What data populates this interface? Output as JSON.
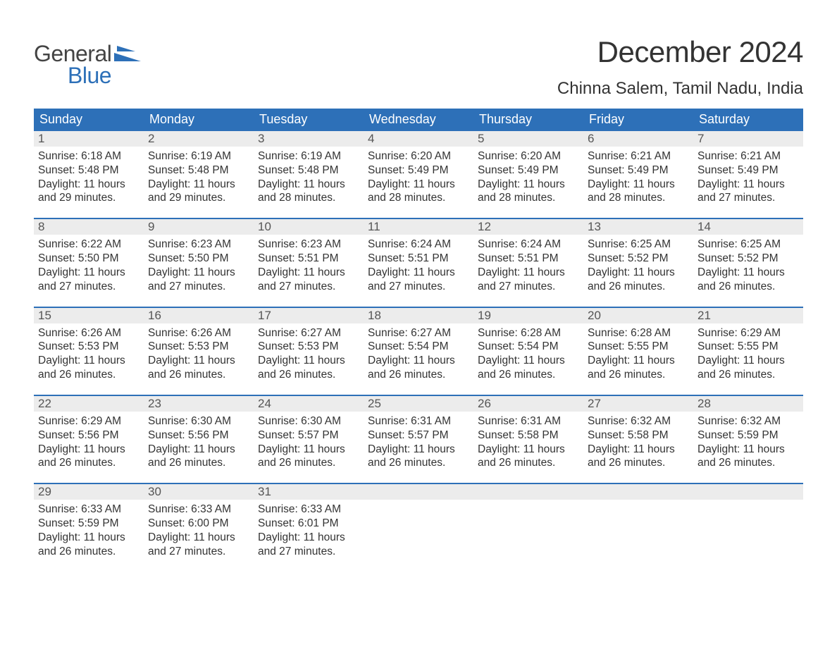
{
  "logo": {
    "word1": "General",
    "word2": "Blue",
    "accent_color": "#2d70b8",
    "text_color": "#444444"
  },
  "title": "December 2024",
  "location": "Chinna Salem, Tamil Nadu, India",
  "colors": {
    "header_bg": "#2d70b8",
    "header_text": "#ffffff",
    "daynum_bg": "#ececec",
    "daynum_text": "#555555",
    "body_text": "#333333",
    "week_divider": "#2d70b8",
    "page_bg": "#ffffff"
  },
  "font": {
    "family": "Arial",
    "title_size": 42,
    "location_size": 24,
    "dayhead_size": 18,
    "daynum_size": 17,
    "body_size": 15.5
  },
  "day_names": [
    "Sunday",
    "Monday",
    "Tuesday",
    "Wednesday",
    "Thursday",
    "Friday",
    "Saturday"
  ],
  "weeks": [
    [
      {
        "n": "1",
        "sr": "6:18 AM",
        "ss": "5:48 PM",
        "dl": "11 hours and 29 minutes."
      },
      {
        "n": "2",
        "sr": "6:19 AM",
        "ss": "5:48 PM",
        "dl": "11 hours and 29 minutes."
      },
      {
        "n": "3",
        "sr": "6:19 AM",
        "ss": "5:48 PM",
        "dl": "11 hours and 28 minutes."
      },
      {
        "n": "4",
        "sr": "6:20 AM",
        "ss": "5:49 PM",
        "dl": "11 hours and 28 minutes."
      },
      {
        "n": "5",
        "sr": "6:20 AM",
        "ss": "5:49 PM",
        "dl": "11 hours and 28 minutes."
      },
      {
        "n": "6",
        "sr": "6:21 AM",
        "ss": "5:49 PM",
        "dl": "11 hours and 28 minutes."
      },
      {
        "n": "7",
        "sr": "6:21 AM",
        "ss": "5:49 PM",
        "dl": "11 hours and 27 minutes."
      }
    ],
    [
      {
        "n": "8",
        "sr": "6:22 AM",
        "ss": "5:50 PM",
        "dl": "11 hours and 27 minutes."
      },
      {
        "n": "9",
        "sr": "6:23 AM",
        "ss": "5:50 PM",
        "dl": "11 hours and 27 minutes."
      },
      {
        "n": "10",
        "sr": "6:23 AM",
        "ss": "5:51 PM",
        "dl": "11 hours and 27 minutes."
      },
      {
        "n": "11",
        "sr": "6:24 AM",
        "ss": "5:51 PM",
        "dl": "11 hours and 27 minutes."
      },
      {
        "n": "12",
        "sr": "6:24 AM",
        "ss": "5:51 PM",
        "dl": "11 hours and 27 minutes."
      },
      {
        "n": "13",
        "sr": "6:25 AM",
        "ss": "5:52 PM",
        "dl": "11 hours and 26 minutes."
      },
      {
        "n": "14",
        "sr": "6:25 AM",
        "ss": "5:52 PM",
        "dl": "11 hours and 26 minutes."
      }
    ],
    [
      {
        "n": "15",
        "sr": "6:26 AM",
        "ss": "5:53 PM",
        "dl": "11 hours and 26 minutes."
      },
      {
        "n": "16",
        "sr": "6:26 AM",
        "ss": "5:53 PM",
        "dl": "11 hours and 26 minutes."
      },
      {
        "n": "17",
        "sr": "6:27 AM",
        "ss": "5:53 PM",
        "dl": "11 hours and 26 minutes."
      },
      {
        "n": "18",
        "sr": "6:27 AM",
        "ss": "5:54 PM",
        "dl": "11 hours and 26 minutes."
      },
      {
        "n": "19",
        "sr": "6:28 AM",
        "ss": "5:54 PM",
        "dl": "11 hours and 26 minutes."
      },
      {
        "n": "20",
        "sr": "6:28 AM",
        "ss": "5:55 PM",
        "dl": "11 hours and 26 minutes."
      },
      {
        "n": "21",
        "sr": "6:29 AM",
        "ss": "5:55 PM",
        "dl": "11 hours and 26 minutes."
      }
    ],
    [
      {
        "n": "22",
        "sr": "6:29 AM",
        "ss": "5:56 PM",
        "dl": "11 hours and 26 minutes."
      },
      {
        "n": "23",
        "sr": "6:30 AM",
        "ss": "5:56 PM",
        "dl": "11 hours and 26 minutes."
      },
      {
        "n": "24",
        "sr": "6:30 AM",
        "ss": "5:57 PM",
        "dl": "11 hours and 26 minutes."
      },
      {
        "n": "25",
        "sr": "6:31 AM",
        "ss": "5:57 PM",
        "dl": "11 hours and 26 minutes."
      },
      {
        "n": "26",
        "sr": "6:31 AM",
        "ss": "5:58 PM",
        "dl": "11 hours and 26 minutes."
      },
      {
        "n": "27",
        "sr": "6:32 AM",
        "ss": "5:58 PM",
        "dl": "11 hours and 26 minutes."
      },
      {
        "n": "28",
        "sr": "6:32 AM",
        "ss": "5:59 PM",
        "dl": "11 hours and 26 minutes."
      }
    ],
    [
      {
        "n": "29",
        "sr": "6:33 AM",
        "ss": "5:59 PM",
        "dl": "11 hours and 26 minutes."
      },
      {
        "n": "30",
        "sr": "6:33 AM",
        "ss": "6:00 PM",
        "dl": "11 hours and 27 minutes."
      },
      {
        "n": "31",
        "sr": "6:33 AM",
        "ss": "6:01 PM",
        "dl": "11 hours and 27 minutes."
      },
      null,
      null,
      null,
      null
    ]
  ],
  "labels": {
    "sunrise": "Sunrise: ",
    "sunset": "Sunset: ",
    "daylight": "Daylight: "
  }
}
